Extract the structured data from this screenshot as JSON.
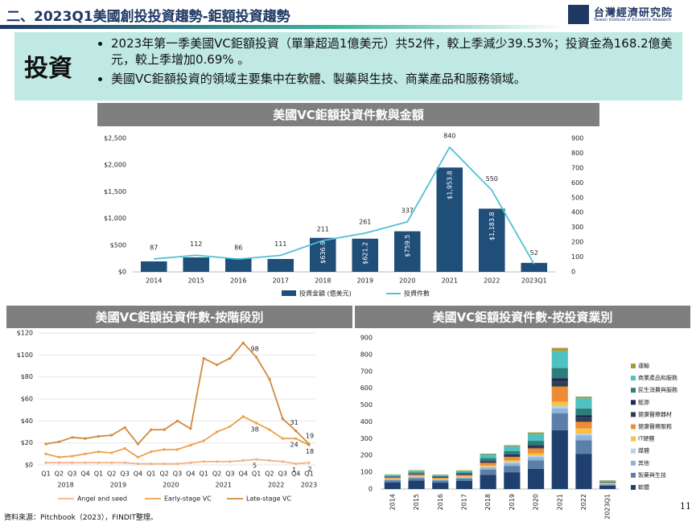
{
  "header": {
    "title": "二、2023Q1美國創投投資趨勢-鉅額投資趨勢",
    "logo_name": "台灣經濟研究院",
    "logo_subtitle": "Taiwan Institute of Economic Research"
  },
  "summary": {
    "label": "投資",
    "bullets": [
      "2023年第一季美國VC鉅額投資（單筆超過1億美元）共52件，較上季減少39.53%；投資金為168.2億美元，較上季增加0.69% 。",
      "美國VC鉅額投資的領域主要集中在軟體、製藥與生技、商業產品和服務領域。"
    ]
  },
  "chart_data": [
    {
      "type": "combo",
      "title": "美國VC鉅額投資件數與金額",
      "categories": [
        "2014",
        "2015",
        "2016",
        "2017",
        "2018",
        "2019",
        "2020",
        "2021",
        "2022",
        "2023Q1"
      ],
      "series": [
        {
          "name": "投資金額 (億美元)",
          "type": "bar",
          "color": "#1f4e79",
          "values": [
            196,
            271,
            256,
            241,
            636.9,
            621.2,
            759.5,
            1953.8,
            1183.8,
            168.2
          ],
          "value_labels": [
            null,
            null,
            null,
            null,
            "$636.9",
            "$621.2",
            "$759.5",
            "$1,953.8",
            "$1,183.8",
            null
          ]
        },
        {
          "name": "投資件數",
          "type": "line",
          "axis": "y2",
          "color": "#4fc1d6",
          "values": [
            87,
            112,
            86,
            111,
            211,
            261,
            337,
            840,
            550,
            52
          ]
        }
      ],
      "ylim": [
        0,
        2500
      ],
      "yticks": [
        {
          "value": 0,
          "label": "$0"
        },
        {
          "value": 500,
          "label": "$500"
        },
        {
          "value": 1000,
          "label": "$1,000"
        },
        {
          "value": 1500,
          "label": "$1,500"
        },
        {
          "value": 2000,
          "label": "$2,000"
        },
        {
          "value": 2500,
          "label": "$2,500"
        }
      ],
      "y2lim": [
        0,
        900
      ],
      "y2ticks": [
        0,
        100,
        200,
        300,
        400,
        500,
        600,
        700,
        800,
        900
      ]
    },
    {
      "type": "line",
      "title": "美國VC鉅額投資件數-按階段別",
      "categories": [
        "Q1",
        "Q2",
        "Q3",
        "Q4",
        "Q1",
        "Q2",
        "Q3",
        "Q4",
        "Q1",
        "Q2",
        "Q3",
        "Q4",
        "Q1",
        "Q2",
        "Q3",
        "Q4",
        "Q1",
        "Q2",
        "Q3",
        "Q4",
        "Q1"
      ],
      "category_groups": [
        "2018",
        "2019",
        "2020",
        "2021",
        "2022",
        "2023"
      ],
      "series": [
        {
          "name": "Angel and seed",
          "color": "#f4b183",
          "values": [
            2,
            2,
            2,
            2,
            2,
            2,
            2,
            1,
            1,
            1,
            1,
            2,
            3,
            3,
            3,
            4,
            5,
            4,
            3,
            1,
            2
          ],
          "value_labels": [
            null,
            null,
            null,
            null,
            null,
            null,
            null,
            null,
            null,
            null,
            null,
            null,
            null,
            null,
            null,
            null,
            "5",
            null,
            null,
            "1",
            "2"
          ]
        },
        {
          "name": "Early-stage VC",
          "color": "#eea04c",
          "values": [
            10,
            7,
            8,
            10,
            12,
            11,
            15,
            7,
            12,
            14,
            14,
            18,
            22,
            30,
            35,
            44,
            38,
            32,
            24,
            24,
            18
          ],
          "value_labels": [
            null,
            null,
            null,
            null,
            null,
            null,
            null,
            null,
            null,
            null,
            null,
            null,
            null,
            null,
            null,
            null,
            "38",
            null,
            null,
            "24",
            "18"
          ]
        },
        {
          "name": "Late-stage VC",
          "color": "#d08a3a",
          "values": [
            19,
            21,
            25,
            24,
            26,
            27,
            34,
            19,
            32,
            32,
            40,
            33,
            97,
            91,
            97,
            111,
            98,
            78,
            42,
            31,
            19
          ],
          "value_labels": [
            null,
            null,
            null,
            null,
            null,
            null,
            null,
            null,
            null,
            null,
            null,
            null,
            null,
            null,
            null,
            null,
            "98",
            null,
            null,
            "31",
            "19"
          ]
        }
      ],
      "ylim": [
        0,
        120
      ],
      "yticks": [
        {
          "value": 0,
          "label": "$0"
        },
        {
          "value": 20,
          "label": "$20"
        },
        {
          "value": 40,
          "label": "$40"
        },
        {
          "value": 60,
          "label": "$60"
        },
        {
          "value": 80,
          "label": "$80"
        },
        {
          "value": 100,
          "label": "$100"
        },
        {
          "value": 120,
          "label": "$120"
        }
      ]
    },
    {
      "type": "stacked_bar",
      "title": "美國VC鉅額投資件數-按投資業別",
      "categories": [
        "2014",
        "2015",
        "2016",
        "2017",
        "2018",
        "2019",
        "2020",
        "2021",
        "2022",
        "2023Q1"
      ],
      "series": [
        {
          "name": "軟體",
          "color": "#1f3f6e",
          "values": [
            40,
            50,
            38,
            48,
            85,
            100,
            120,
            350,
            210,
            20
          ]
        },
        {
          "name": "製藥與生技",
          "color": "#5b7fa8",
          "values": [
            12,
            15,
            12,
            15,
            30,
            38,
            50,
            100,
            80,
            7
          ]
        },
        {
          "name": "其他",
          "color": "#8fb4d9",
          "values": [
            5,
            6,
            5,
            6,
            12,
            15,
            20,
            30,
            30,
            3
          ]
        },
        {
          "name": "媒體",
          "color": "#bcd0e4",
          "values": [
            3,
            4,
            3,
            4,
            6,
            8,
            10,
            15,
            10,
            2
          ]
        },
        {
          "name": "IT硬體",
          "color": "#f5c242",
          "values": [
            3,
            4,
            3,
            4,
            8,
            10,
            12,
            25,
            30,
            2
          ]
        },
        {
          "name": "健康醫療服務",
          "color": "#ed8c35",
          "values": [
            5,
            7,
            6,
            7,
            15,
            20,
            30,
            90,
            40,
            4
          ]
        },
        {
          "name": "健康醫療器材",
          "color": "#2f3e4e",
          "values": [
            3,
            4,
            3,
            4,
            8,
            10,
            12,
            30,
            25,
            2
          ]
        },
        {
          "name": "能源",
          "color": "#1c2c54",
          "values": [
            2,
            2,
            2,
            3,
            5,
            6,
            8,
            20,
            15,
            1
          ]
        },
        {
          "name": "民生消費與服務",
          "color": "#2e7d7a",
          "values": [
            5,
            7,
            5,
            7,
            15,
            18,
            25,
            60,
            40,
            3
          ]
        },
        {
          "name": "商業產品和服務",
          "color": "#4fc1c0",
          "values": [
            7,
            10,
            7,
            10,
            22,
            29,
            40,
            100,
            60,
            6
          ]
        },
        {
          "name": "運輸",
          "color": "#a69a3c",
          "values": [
            2,
            3,
            2,
            3,
            5,
            7,
            10,
            20,
            10,
            2
          ]
        }
      ],
      "ylim": [
        0,
        900
      ],
      "yticks": [
        0,
        100,
        200,
        300,
        400,
        500,
        600,
        700,
        800,
        900
      ]
    }
  ],
  "source": "資料來源：Pitchbook（2023），FINDIT整理。",
  "page_number": "11"
}
